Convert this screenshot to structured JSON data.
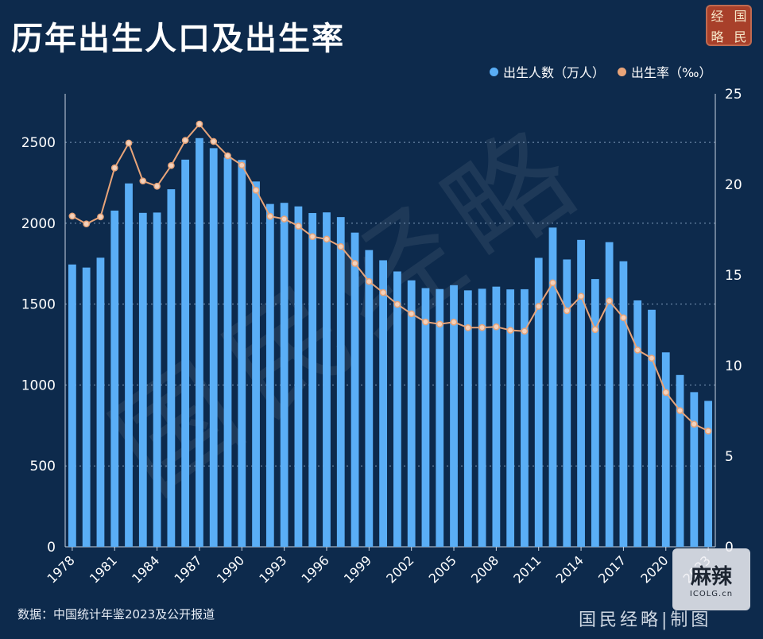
{
  "title": "历年出生人口及出生率",
  "seal": {
    "chars": [
      "经",
      "国",
      "略",
      "民"
    ]
  },
  "legend": {
    "births": "出生人数（万人）",
    "rate": "出生率（‰）"
  },
  "source": "数据：中国统计年鉴2023及公开报道",
  "footer_brand": "国民经略|制图",
  "watermark": "国民经略",
  "badge": {
    "main": "麻辣",
    "sub": "ICOLG.cn"
  },
  "colors": {
    "background": "#0d2a4c",
    "bar": "#5aaef6",
    "line": "#e8a479",
    "marker_fill": "#f3d2bd",
    "grid": "#7e99b8"
  },
  "chart_data": {
    "type": "bar",
    "title": "历年出生人口及出生率",
    "categories": [
      1978,
      1979,
      1980,
      1981,
      1982,
      1983,
      1984,
      1985,
      1986,
      1987,
      1988,
      1989,
      1990,
      1991,
      1992,
      1993,
      1994,
      1995,
      1996,
      1997,
      1998,
      1999,
      2000,
      2001,
      2002,
      2003,
      2004,
      2005,
      2006,
      2007,
      2008,
      2009,
      2010,
      2011,
      2012,
      2013,
      2014,
      2015,
      2016,
      2017,
      2018,
      2019,
      2020,
      2021,
      2022,
      2023
    ],
    "x_tick_labels": [
      1978,
      1981,
      1984,
      1987,
      1990,
      1993,
      1996,
      1999,
      2002,
      2005,
      2008,
      2011,
      2014,
      2017,
      2020,
      2023
    ],
    "series": [
      {
        "name": "出生人数（万人）",
        "type": "bar",
        "axis": "left",
        "values": [
          1745,
          1726,
          1787,
          2078,
          2246,
          2064,
          2066,
          2210,
          2393,
          2526,
          2464,
          2406,
          2391,
          2258,
          2119,
          2126,
          2104,
          2063,
          2067,
          2038,
          1942,
          1834,
          1771,
          1702,
          1647,
          1599,
          1593,
          1617,
          1585,
          1595,
          1608,
          1591,
          1592,
          1786,
          1973,
          1776,
          1897,
          1655,
          1883,
          1765,
          1523,
          1465,
          1202,
          1062,
          956,
          902
        ]
      },
      {
        "name": "出生率（‰）",
        "type": "line",
        "axis": "right",
        "values": [
          18.25,
          17.82,
          18.21,
          20.91,
          22.28,
          20.19,
          19.9,
          21.04,
          22.43,
          23.33,
          22.37,
          21.58,
          21.06,
          19.68,
          18.24,
          18.09,
          17.7,
          17.12,
          16.98,
          16.57,
          15.64,
          14.64,
          14.03,
          13.38,
          12.86,
          12.41,
          12.29,
          12.4,
          12.09,
          12.1,
          12.14,
          11.95,
          11.9,
          13.27,
          14.57,
          13.03,
          13.83,
          11.99,
          13.57,
          12.64,
          10.86,
          10.41,
          8.52,
          7.52,
          6.77,
          6.39
        ]
      }
    ],
    "y_left": {
      "min": 0,
      "max": 2800,
      "ticks": [
        0,
        500,
        1000,
        1500,
        2000,
        2500
      ]
    },
    "y_right": {
      "min": 0,
      "max": 25,
      "ticks": [
        0,
        5,
        10,
        15,
        20,
        25
      ]
    },
    "grid": "horizontal dotted",
    "legend_position": "top-right"
  }
}
